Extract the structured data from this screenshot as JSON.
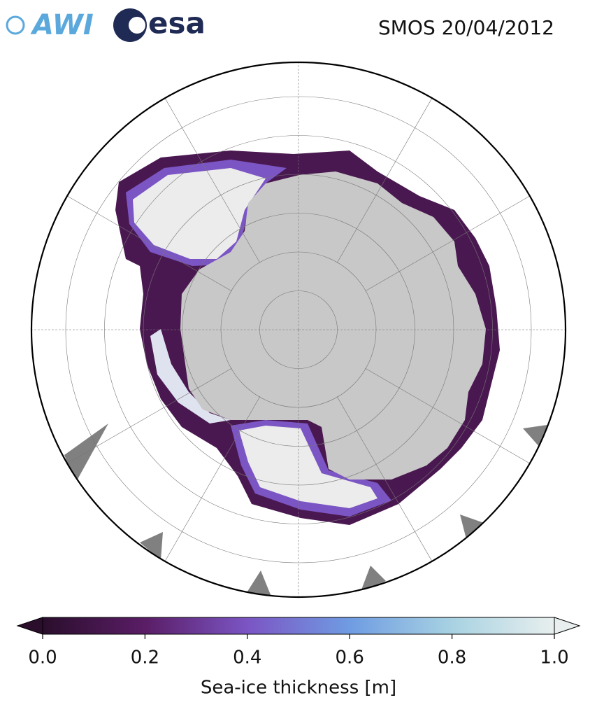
{
  "header": {
    "logos": [
      "AWI",
      "esa"
    ],
    "title": "SMOS 20/04/2012"
  },
  "colorbar": {
    "label": "Sea-ice thickness [m]",
    "lim": [
      0,
      1
    ],
    "ticks": [
      {
        "value": 0,
        "label": "0.0"
      },
      0.2,
      0.4,
      0.6,
      0.8,
      {
        "value": 1,
        "label": "1.0"
      }
    ],
    "colors": [
      "#2a0e2c",
      "#5a1d66",
      "#7b55c4",
      "#6f9ce2",
      "#a8d2e2",
      "#e8efee"
    ]
  }
}
